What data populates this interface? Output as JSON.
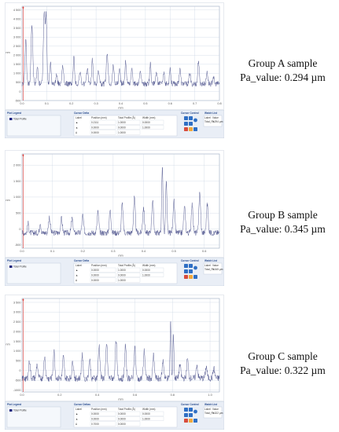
{
  "chart_data": [
    {
      "type": "line",
      "x_ticks": [
        "0.0",
        "0.1",
        "0.2",
        "0.3",
        "0.4",
        "0.5",
        "0.6",
        "0.7",
        "0.8"
      ],
      "y_ticks": [
        "-500",
        "0",
        "500",
        "1 000",
        "1 500",
        "2 000",
        "2 500",
        "3 000",
        "3 500",
        "4 000",
        "4 500"
      ],
      "xlim": [
        0,
        0.8
      ],
      "ylim": [
        -500,
        4700
      ],
      "x_label": "mm",
      "y_label": "nm",
      "series": [
        {
          "name": "Total Profile",
          "baseline": 420,
          "noise": 150,
          "peaks": [
            [
              0.015,
              2600,
              0.004
            ],
            [
              0.04,
              3250,
              0.005
            ],
            [
              0.062,
              950,
              0.004
            ],
            [
              0.09,
              3900,
              0.005
            ],
            [
              0.098,
              3600,
              0.004
            ],
            [
              0.115,
              1200,
              0.004
            ],
            [
              0.14,
              500,
              0.004
            ],
            [
              0.165,
              900,
              0.005
            ],
            [
              0.21,
              1500,
              0.004
            ],
            [
              0.235,
              700,
              0.004
            ],
            [
              0.265,
              900,
              0.004
            ],
            [
              0.285,
              1300,
              0.004
            ],
            [
              0.31,
              800,
              0.004
            ],
            [
              0.345,
              1600,
              0.005
            ],
            [
              0.37,
              1100,
              0.004
            ],
            [
              0.395,
              900,
              0.004
            ],
            [
              0.42,
              1300,
              0.004
            ],
            [
              0.445,
              800,
              0.004
            ],
            [
              0.48,
              700,
              0.004
            ],
            [
              0.52,
              1100,
              0.004
            ],
            [
              0.545,
              700,
              0.004
            ],
            [
              0.575,
              600,
              0.004
            ],
            [
              0.6,
              900,
              0.004
            ],
            [
              0.64,
              900,
              0.004
            ],
            [
              0.68,
              600,
              0.004
            ],
            [
              0.715,
              1300,
              0.004
            ],
            [
              0.75,
              700,
              0.004
            ],
            [
              0.775,
              400,
              0.004
            ]
          ]
        }
      ]
    },
    {
      "type": "line",
      "x_ticks": [
        "0.0",
        "0.1",
        "0.2",
        "0.3",
        "0.4",
        "0.5",
        "0.6"
      ],
      "y_ticks": [
        "-500",
        "0",
        "500",
        "1 000",
        "1 500",
        "2 000"
      ],
      "xlim": [
        0,
        0.65
      ],
      "ylim": [
        -600,
        2350
      ],
      "x_label": "mm",
      "y_label": "nm",
      "series": [
        {
          "name": "Total Profile",
          "baseline": -120,
          "noise": 90,
          "peaks": [
            [
              0.02,
              300,
              0.003
            ],
            [
              0.06,
              350,
              0.003
            ],
            [
              0.09,
              500,
              0.004
            ],
            [
              0.13,
              450,
              0.004
            ],
            [
              0.165,
              450,
              0.004
            ],
            [
              0.2,
              550,
              0.004
            ],
            [
              0.25,
              650,
              0.004
            ],
            [
              0.29,
              700,
              0.004
            ],
            [
              0.33,
              900,
              0.004
            ],
            [
              0.37,
              1100,
              0.004
            ],
            [
              0.4,
              800,
              0.004
            ],
            [
              0.43,
              1000,
              0.004
            ],
            [
              0.462,
              2050,
              0.003
            ],
            [
              0.475,
              1600,
              0.003
            ],
            [
              0.5,
              1000,
              0.004
            ],
            [
              0.535,
              800,
              0.004
            ],
            [
              0.56,
              900,
              0.004
            ],
            [
              0.585,
              1250,
              0.004
            ],
            [
              0.61,
              900,
              0.004
            ]
          ]
        }
      ]
    },
    {
      "type": "line",
      "x_ticks": [
        "0.0",
        "0.2",
        "0.4",
        "0.6",
        "0.8",
        "1.0"
      ],
      "y_ticks": [
        "-1000",
        "-500",
        "0",
        "500",
        "1 000",
        "1 500",
        "2 000",
        "2 500",
        "3 000",
        "3 500"
      ],
      "xlim": [
        0,
        1.05
      ],
      "ylim": [
        -1100,
        3700
      ],
      "x_label": "mm",
      "y_label": "nm",
      "series": [
        {
          "name": "Total Profile",
          "baseline": -400,
          "noise": 170,
          "peaks": [
            [
              0.04,
              900,
              0.006
            ],
            [
              0.08,
              700,
              0.006
            ],
            [
              0.12,
              1100,
              0.006
            ],
            [
              0.17,
              1400,
              0.006
            ],
            [
              0.22,
              1100,
              0.006
            ],
            [
              0.27,
              900,
              0.006
            ],
            [
              0.32,
              1200,
              0.006
            ],
            [
              0.36,
              1000,
              0.006
            ],
            [
              0.41,
              1700,
              0.006
            ],
            [
              0.45,
              1800,
              0.006
            ],
            [
              0.5,
              2000,
              0.006
            ],
            [
              0.55,
              1700,
              0.006
            ],
            [
              0.6,
              1600,
              0.006
            ],
            [
              0.65,
              1400,
              0.006
            ],
            [
              0.7,
              1200,
              0.006
            ],
            [
              0.75,
              900,
              0.006
            ],
            [
              0.79,
              2900,
              0.004
            ],
            [
              0.805,
              2300,
              0.004
            ],
            [
              0.84,
              700,
              0.006
            ],
            [
              0.88,
              1000,
              0.006
            ],
            [
              0.93,
              700,
              0.006
            ],
            [
              0.98,
              600,
              0.006
            ],
            [
              1.02,
              500,
              0.006
            ]
          ]
        }
      ]
    }
  ],
  "captions": [
    {
      "group": "Group A sample",
      "value": "Pa_value: 0.294 µm"
    },
    {
      "group": "Group B sample",
      "value": "Pa_value: 0.345 µm"
    },
    {
      "group": "Group C sample",
      "value": "Pa_value: 0.322 µm"
    }
  ],
  "toolbars": [
    {
      "legend_title": "Plot Legend",
      "legend_item": "Total Profile",
      "cursor_title": "Cursor Delta",
      "cols": [
        "Label",
        "Position (mm)",
        "Total Profile (Å)",
        "Width (mm)"
      ],
      "rows": [
        [
          "▲",
          "0.2111",
          "1.0000",
          "0.0000"
        ],
        [
          "▲",
          "0.0000",
          "0.0000",
          "1.0000"
        ],
        [
          "Δ",
          "0.0000",
          "1.0000",
          ""
        ]
      ],
      "cursor_control": "Cursor Control",
      "watch_title": "Watch List",
      "watch": [
        "Label",
        "Value",
        "Total_Pa",
        "0.294 µm"
      ]
    },
    {
      "legend_title": "Plot Legend",
      "legend_item": "Total Profile",
      "cursor_title": "Cursor Delta",
      "cols": [
        "Label",
        "Position (mm)",
        "Total Profile (Å)",
        "Width (mm)"
      ],
      "rows": [
        [
          "▲",
          "0.0000",
          "1.0000",
          "0.0000"
        ],
        [
          "▲",
          "0.0000",
          "0.0000",
          "1.0000"
        ],
        [
          "Δ",
          "0.0000",
          "1.0000",
          ""
        ]
      ],
      "cursor_control": "Cursor Control",
      "watch_title": "Watch List",
      "watch": [
        "Label",
        "Value",
        "Total_Pa",
        "0.345 µm"
      ]
    },
    {
      "legend_title": "Plot Legend",
      "legend_item": "Total Profile",
      "cursor_title": "Cursor Deltas",
      "cols": [
        "Label",
        "Position (mm)",
        "Total Profile (Å)",
        "Width (mm)"
      ],
      "rows": [
        [
          "▲",
          "0.0000",
          "0.0000",
          "0.0000"
        ],
        [
          "▲",
          "0.0000",
          "0.0000",
          "1.0000"
        ],
        [
          "Δ",
          "0.7000",
          "0.0000",
          ""
        ]
      ],
      "cursor_control": "Cursor Control",
      "watch_title": "Watch List",
      "watch": [
        "Label",
        "Value",
        "Total_Pa",
        "0.322 µm"
      ]
    }
  ],
  "colors": {
    "line": "#4a4f8a",
    "grid": "#c7d3e2",
    "frame": "#9aa9be",
    "marker": "#d9302a",
    "toolbar_bg": "#e9eef6",
    "toolbar_head": "#4a79c0"
  }
}
